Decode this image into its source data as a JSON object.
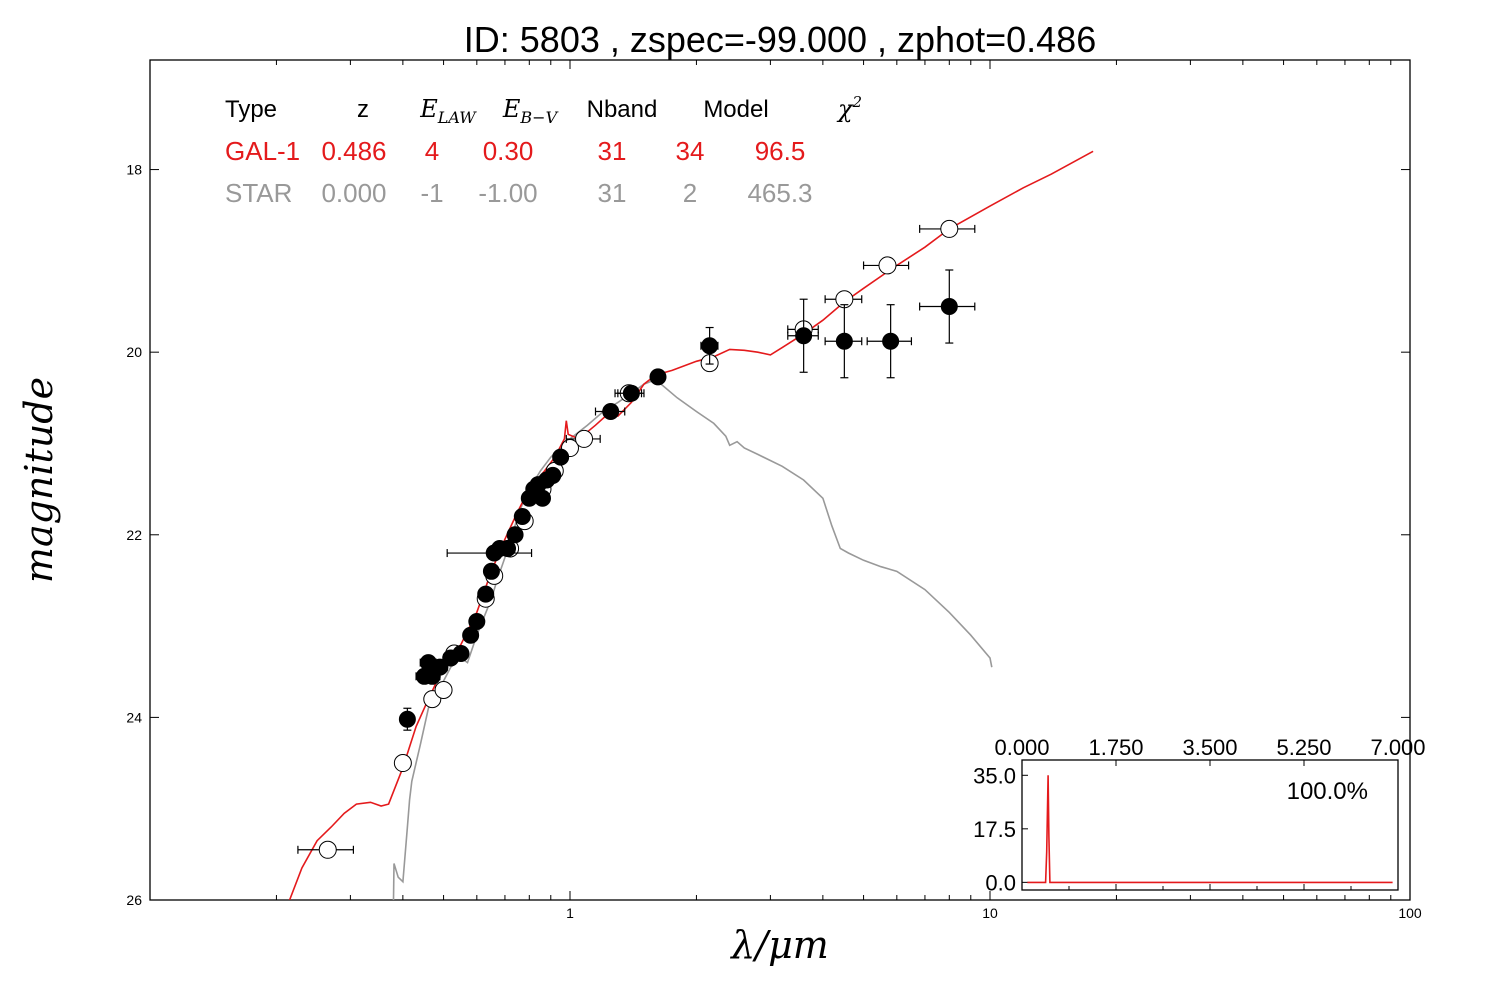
{
  "title": "ID:  5803  , zspec=-99.000 , zphot=0.486",
  "colors": {
    "galaxy": "#e41a1c",
    "star": "#999999",
    "axis": "#000000"
  },
  "legend": {
    "headers": [
      "Type",
      "z",
      "E_LAW",
      "E_B-V",
      "Nband",
      "Model",
      "χ²"
    ],
    "rows": [
      {
        "name": "GAL-1",
        "cells": [
          "GAL-1",
          "0.486",
          "4",
          "0.30",
          "31",
          "34",
          "96.5"
        ],
        "color": "#e41a1c"
      },
      {
        "name": "STAR",
        "cells": [
          "STAR",
          "0.000",
          "-1",
          "-1.00",
          "31",
          "2",
          "465.3"
        ],
        "color": "#999999"
      }
    ]
  },
  "chart_data": [
    {
      "type": "scatter",
      "name": "sed",
      "xlabel": "λ/μm",
      "ylabel": "magnitude",
      "xscale": "log",
      "xlim": [
        0.1,
        100
      ],
      "ylim": [
        26,
        16.8
      ],
      "y_inverted": true,
      "xtick_labels": [
        "1",
        "10",
        "100"
      ],
      "xtick_values": [
        1,
        10,
        100
      ],
      "ytick_labels": [
        "18",
        "20",
        "22",
        "24",
        "26"
      ],
      "ytick_values": [
        18,
        20,
        22,
        24,
        26
      ],
      "series": [
        {
          "name": "GAL-1",
          "kind": "line",
          "color": "#e41a1c",
          "points": [
            [
              0.215,
              26.0
            ],
            [
              0.23,
              25.65
            ],
            [
              0.25,
              25.35
            ],
            [
              0.27,
              25.2
            ],
            [
              0.29,
              25.05
            ],
            [
              0.31,
              24.95
            ],
            [
              0.335,
              24.93
            ],
            [
              0.355,
              24.97
            ],
            [
              0.37,
              24.95
            ],
            [
              0.4,
              24.55
            ],
            [
              0.43,
              24.1
            ],
            [
              0.46,
              23.8
            ],
            [
              0.5,
              23.45
            ],
            [
              0.55,
              23.2
            ],
            [
              0.6,
              22.85
            ],
            [
              0.65,
              22.4
            ],
            [
              0.7,
              22.05
            ],
            [
              0.75,
              21.75
            ],
            [
              0.8,
              21.5
            ],
            [
              0.87,
              21.3
            ],
            [
              0.92,
              21.15
            ],
            [
              0.97,
              20.95
            ],
            [
              0.98,
              20.75
            ],
            [
              0.99,
              20.9
            ],
            [
              1.05,
              20.95
            ],
            [
              1.15,
              20.8
            ],
            [
              1.25,
              20.65
            ],
            [
              1.3,
              20.7
            ],
            [
              1.4,
              20.55
            ],
            [
              1.5,
              20.35
            ],
            [
              1.6,
              20.25
            ],
            [
              1.75,
              20.2
            ],
            [
              2.0,
              20.1
            ],
            [
              2.2,
              20.05
            ],
            [
              2.4,
              19.97
            ],
            [
              2.6,
              19.98
            ],
            [
              2.8,
              20.0
            ],
            [
              3.0,
              20.03
            ],
            [
              3.2,
              19.95
            ],
            [
              3.6,
              19.8
            ],
            [
              4.0,
              19.65
            ],
            [
              4.5,
              19.45
            ],
            [
              5.0,
              19.3
            ],
            [
              6.0,
              19.05
            ],
            [
              7.0,
              18.85
            ],
            [
              8.0,
              18.65
            ],
            [
              10.0,
              18.4
            ],
            [
              12.0,
              18.2
            ],
            [
              14.0,
              18.05
            ],
            [
              17.6,
              17.8
            ]
          ]
        },
        {
          "name": "STAR",
          "kind": "line",
          "color": "#999999",
          "points": [
            [
              0.38,
              26.0
            ],
            [
              0.381,
              25.6
            ],
            [
              0.39,
              25.75
            ],
            [
              0.4,
              25.8
            ],
            [
              0.41,
              25.2
            ],
            [
              0.415,
              24.9
            ],
            [
              0.42,
              24.7
            ],
            [
              0.44,
              24.3
            ],
            [
              0.46,
              23.9
            ],
            [
              0.48,
              23.7
            ],
            [
              0.5,
              23.6
            ],
            [
              0.52,
              23.45
            ],
            [
              0.55,
              23.35
            ],
            [
              0.57,
              23.4
            ],
            [
              0.6,
              23.1
            ],
            [
              0.65,
              22.7
            ],
            [
              0.67,
              22.5
            ],
            [
              0.7,
              22.25
            ],
            [
              0.72,
              22.1
            ],
            [
              0.75,
              21.8
            ],
            [
              0.78,
              21.6
            ],
            [
              0.8,
              21.5
            ],
            [
              0.85,
              21.3
            ],
            [
              0.9,
              21.15
            ],
            [
              1.0,
              20.95
            ],
            [
              1.1,
              20.8
            ],
            [
              1.2,
              20.65
            ],
            [
              1.3,
              20.55
            ],
            [
              1.4,
              20.45
            ],
            [
              1.5,
              20.35
            ],
            [
              1.6,
              20.3
            ],
            [
              1.8,
              20.5
            ],
            [
              2.0,
              20.65
            ],
            [
              2.2,
              20.78
            ],
            [
              2.35,
              20.92
            ],
            [
              2.4,
              21.02
            ],
            [
              2.5,
              20.98
            ],
            [
              2.6,
              21.05
            ],
            [
              2.8,
              21.12
            ],
            [
              3.2,
              21.25
            ],
            [
              3.6,
              21.4
            ],
            [
              4.0,
              21.6
            ],
            [
              4.2,
              21.9
            ],
            [
              4.4,
              22.15
            ],
            [
              4.6,
              22.2
            ],
            [
              5.0,
              22.28
            ],
            [
              5.5,
              22.35
            ],
            [
              6.0,
              22.4
            ],
            [
              7.0,
              22.6
            ],
            [
              8.0,
              22.85
            ],
            [
              9.0,
              23.1
            ],
            [
              10.0,
              23.35
            ],
            [
              10.1,
              23.45
            ]
          ]
        },
        {
          "name": "observed",
          "kind": "points",
          "style": "filled",
          "points": [
            {
              "x": 0.41,
              "y": 24.02,
              "xerr": 0.0,
              "yerr": 0.12
            },
            {
              "x": 0.45,
              "y": 23.55,
              "xerr": 0.02,
              "yerr": 0.06
            },
            {
              "x": 0.46,
              "y": 23.4,
              "xerr": 0.02,
              "yerr": 0.06
            },
            {
              "x": 0.47,
              "y": 23.55,
              "xerr": 0.02,
              "yerr": 0.05
            },
            {
              "x": 0.49,
              "y": 23.45,
              "xerr": 0.02,
              "yerr": 0.05
            },
            {
              "x": 0.52,
              "y": 23.35,
              "xerr": 0.02,
              "yerr": 0.05
            },
            {
              "x": 0.55,
              "y": 23.3,
              "xerr": 0.02,
              "yerr": 0.05
            },
            {
              "x": 0.58,
              "y": 23.1,
              "xerr": 0.0,
              "yerr": 0.05
            },
            {
              "x": 0.6,
              "y": 22.95,
              "xerr": 0.0,
              "yerr": 0.05
            },
            {
              "x": 0.63,
              "y": 22.65,
              "xerr": 0.0,
              "yerr": 0.05
            },
            {
              "x": 0.65,
              "y": 22.4,
              "xerr": 0.0,
              "yerr": 0.05
            },
            {
              "x": 0.66,
              "y": 22.2,
              "xerr": 0.15,
              "yerr": 0.05
            },
            {
              "x": 0.68,
              "y": 22.15,
              "xerr": 0.0,
              "yerr": 0.05
            },
            {
              "x": 0.71,
              "y": 22.15,
              "xerr": 0.0,
              "yerr": 0.05
            },
            {
              "x": 0.74,
              "y": 22.0,
              "xerr": 0.0,
              "yerr": 0.05
            },
            {
              "x": 0.77,
              "y": 21.8,
              "xerr": 0.0,
              "yerr": 0.05
            },
            {
              "x": 0.8,
              "y": 21.6,
              "xerr": 0.0,
              "yerr": 0.05
            },
            {
              "x": 0.82,
              "y": 21.5,
              "xerr": 0.0,
              "yerr": 0.05
            },
            {
              "x": 0.84,
              "y": 21.45,
              "xerr": 0.0,
              "yerr": 0.05
            },
            {
              "x": 0.86,
              "y": 21.6,
              "xerr": 0.0,
              "yerr": 0.05
            },
            {
              "x": 0.88,
              "y": 21.4,
              "xerr": 0.0,
              "yerr": 0.05
            },
            {
              "x": 0.91,
              "y": 21.35,
              "xerr": 0.0,
              "yerr": 0.05
            },
            {
              "x": 0.95,
              "y": 21.15,
              "xerr": 0.0,
              "yerr": 0.05
            },
            {
              "x": 1.25,
              "y": 20.65,
              "xerr": 0.1,
              "yerr": 0.05
            },
            {
              "x": 1.4,
              "y": 20.45,
              "xerr": 0.1,
              "yerr": 0.05
            },
            {
              "x": 1.62,
              "y": 20.27,
              "xerr": 0.0,
              "yerr": 0.05
            },
            {
              "x": 2.15,
              "y": 19.93,
              "xerr": 0.1,
              "yerr": 0.2
            },
            {
              "x": 3.6,
              "y": 19.82,
              "xerr": 0.3,
              "yerr": 0.4
            },
            {
              "x": 4.5,
              "y": 19.88,
              "xerr": 0.45,
              "yerr": 0.4
            },
            {
              "x": 5.8,
              "y": 19.88,
              "xerr": 0.7,
              "yerr": 0.4
            },
            {
              "x": 8.0,
              "y": 19.5,
              "xerr": 1.2,
              "yerr": 0.4
            }
          ]
        },
        {
          "name": "model-fluxes",
          "kind": "points",
          "style": "open",
          "points": [
            {
              "x": 0.265,
              "y": 25.45,
              "xerr": 0.04,
              "yerr": 0.0
            },
            {
              "x": 0.4,
              "y": 24.5,
              "xerr": 0.0,
              "yerr": 0.0
            },
            {
              "x": 0.47,
              "y": 23.8,
              "xerr": 0.0,
              "yerr": 0.0
            },
            {
              "x": 0.5,
              "y": 23.7,
              "xerr": 0.0,
              "yerr": 0.0
            },
            {
              "x": 0.53,
              "y": 23.3,
              "xerr": 0.0,
              "yerr": 0.0
            },
            {
              "x": 0.63,
              "y": 22.7,
              "xerr": 0.0,
              "yerr": 0.0
            },
            {
              "x": 0.66,
              "y": 22.45,
              "xerr": 0.0,
              "yerr": 0.0
            },
            {
              "x": 0.72,
              "y": 22.15,
              "xerr": 0.0,
              "yerr": 0.0
            },
            {
              "x": 0.78,
              "y": 21.85,
              "xerr": 0.0,
              "yerr": 0.0
            },
            {
              "x": 0.86,
              "y": 21.5,
              "xerr": 0.0,
              "yerr": 0.0
            },
            {
              "x": 0.92,
              "y": 21.3,
              "xerr": 0.0,
              "yerr": 0.0
            },
            {
              "x": 1.0,
              "y": 21.05,
              "xerr": 0.0,
              "yerr": 0.0
            },
            {
              "x": 1.08,
              "y": 20.95,
              "xerr": 0.1,
              "yerr": 0.0
            },
            {
              "x": 1.38,
              "y": 20.45,
              "xerr": 0.1,
              "yerr": 0.0
            },
            {
              "x": 2.15,
              "y": 20.12,
              "xerr": 0.0,
              "yerr": 0.0
            },
            {
              "x": 3.6,
              "y": 19.75,
              "xerr": 0.3,
              "yerr": 0.0
            },
            {
              "x": 4.5,
              "y": 19.42,
              "xerr": 0.45,
              "yerr": 0.0
            },
            {
              "x": 5.7,
              "y": 19.05,
              "xerr": 0.7,
              "yerr": 0.0
            },
            {
              "x": 8.0,
              "y": 18.65,
              "xerr": 1.2,
              "yerr": 0.0
            }
          ]
        }
      ]
    },
    {
      "type": "line",
      "name": "pdz-inset",
      "xlim": [
        0.0,
        7.0
      ],
      "ylim": [
        -2.5,
        40.0
      ],
      "xtick_labels": [
        "0.000",
        "1.750",
        "3.500",
        "5.250",
        "7.000"
      ],
      "xtick_values": [
        0.0,
        1.75,
        3.5,
        5.25,
        7.0
      ],
      "ytick_labels": [
        "35.0",
        "17.5",
        "0.0"
      ],
      "ytick_values": [
        35.0,
        17.5,
        0.0
      ],
      "annotation": "100.0%",
      "color": "#e41a1c",
      "points": [
        [
          0.1,
          0.0
        ],
        [
          0.44,
          0.0
        ],
        [
          0.46,
          10.0
        ],
        [
          0.486,
          35.0
        ],
        [
          0.5,
          15.0
        ],
        [
          0.52,
          0.0
        ],
        [
          6.9,
          0.0
        ]
      ]
    }
  ]
}
